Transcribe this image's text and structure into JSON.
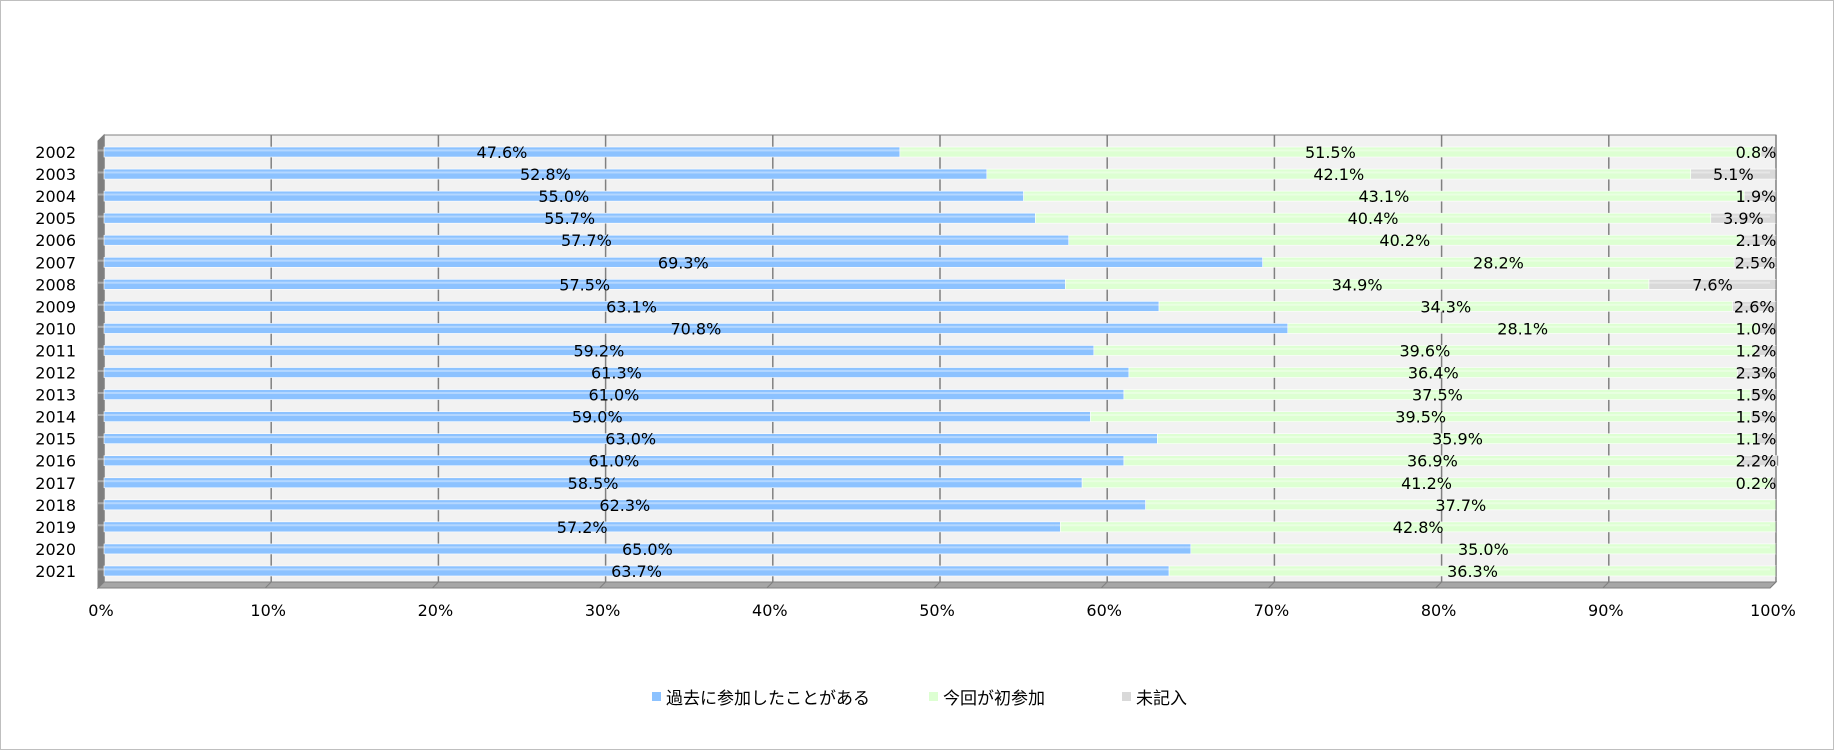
{
  "chart_data": {
    "type": "bar",
    "orientation": "horizontal",
    "stacked": "percent",
    "categories": [
      "2002",
      "2003",
      "2004",
      "2005",
      "2006",
      "2007",
      "2008",
      "2009",
      "2010",
      "2011",
      "2012",
      "2013",
      "2014",
      "2015",
      "2016",
      "2017",
      "2018",
      "2019",
      "2020",
      "2021"
    ],
    "series": [
      {
        "name": "過去に参加したことがある",
        "color": "#8cc2ff",
        "values": [
          47.6,
          52.8,
          55.0,
          55.7,
          57.7,
          69.3,
          57.5,
          63.1,
          70.8,
          59.2,
          61.3,
          61.0,
          59.0,
          63.0,
          61.0,
          58.5,
          62.3,
          57.2,
          65.0,
          63.7
        ],
        "labels": [
          "47.6%",
          "52.8%",
          "55.0%",
          "55.7%",
          "57.7%",
          "69.3%",
          "57.5%",
          "63.1%",
          "70.8%",
          "59.2%",
          "61.3%",
          "61.0%",
          "59.0%",
          "63.0%",
          "61.0%",
          "58.5%",
          "62.3%",
          "57.2%",
          "65.0%",
          "63.7%"
        ]
      },
      {
        "name": "今回が初参加",
        "color": "#ddffd2",
        "values": [
          51.5,
          42.1,
          43.1,
          40.4,
          40.2,
          28.2,
          34.9,
          34.3,
          28.1,
          39.6,
          36.4,
          37.5,
          39.5,
          35.9,
          36.9,
          41.2,
          37.7,
          42.8,
          35.0,
          36.3
        ],
        "labels": [
          "51.5%",
          "42.1%",
          "43.1%",
          "40.4%",
          "40.2%",
          "28.2%",
          "34.9%",
          "34.3%",
          "28.1%",
          "39.6%",
          "36.4%",
          "37.5%",
          "39.5%",
          "35.9%",
          "36.9%",
          "41.2%",
          "37.7%",
          "42.8%",
          "35.0%",
          "36.3%"
        ]
      },
      {
        "name": "未記入",
        "color": "#d9d9d9",
        "values": [
          0.8,
          5.1,
          1.9,
          3.9,
          2.1,
          2.5,
          7.6,
          2.6,
          1.0,
          1.2,
          2.3,
          1.5,
          1.5,
          1.1,
          2.2,
          0.2,
          0,
          0,
          0,
          0
        ],
        "labels": [
          "0.8%",
          "5.1%",
          "1.9%",
          "3.9%",
          "2.1%",
          "2.5%",
          "7.6%",
          "2.6%",
          "1.0%",
          "1.2%",
          "2.3%",
          "1.5%",
          "1.5%",
          "1.1%",
          "2.2%",
          "0.2%",
          "",
          "",
          "",
          ""
        ]
      }
    ],
    "xlim": [
      0,
      100
    ],
    "xticks": [
      "0%",
      "10%",
      "20%",
      "30%",
      "40%",
      "50%",
      "60%",
      "70%",
      "80%",
      "90%",
      "100%"
    ],
    "grid": true,
    "legend_position": "bottom",
    "colors": {
      "grid": "#808080",
      "wall": "#f2f2f2",
      "floor": "#7f7f7f",
      "label_text": "#000000"
    }
  }
}
